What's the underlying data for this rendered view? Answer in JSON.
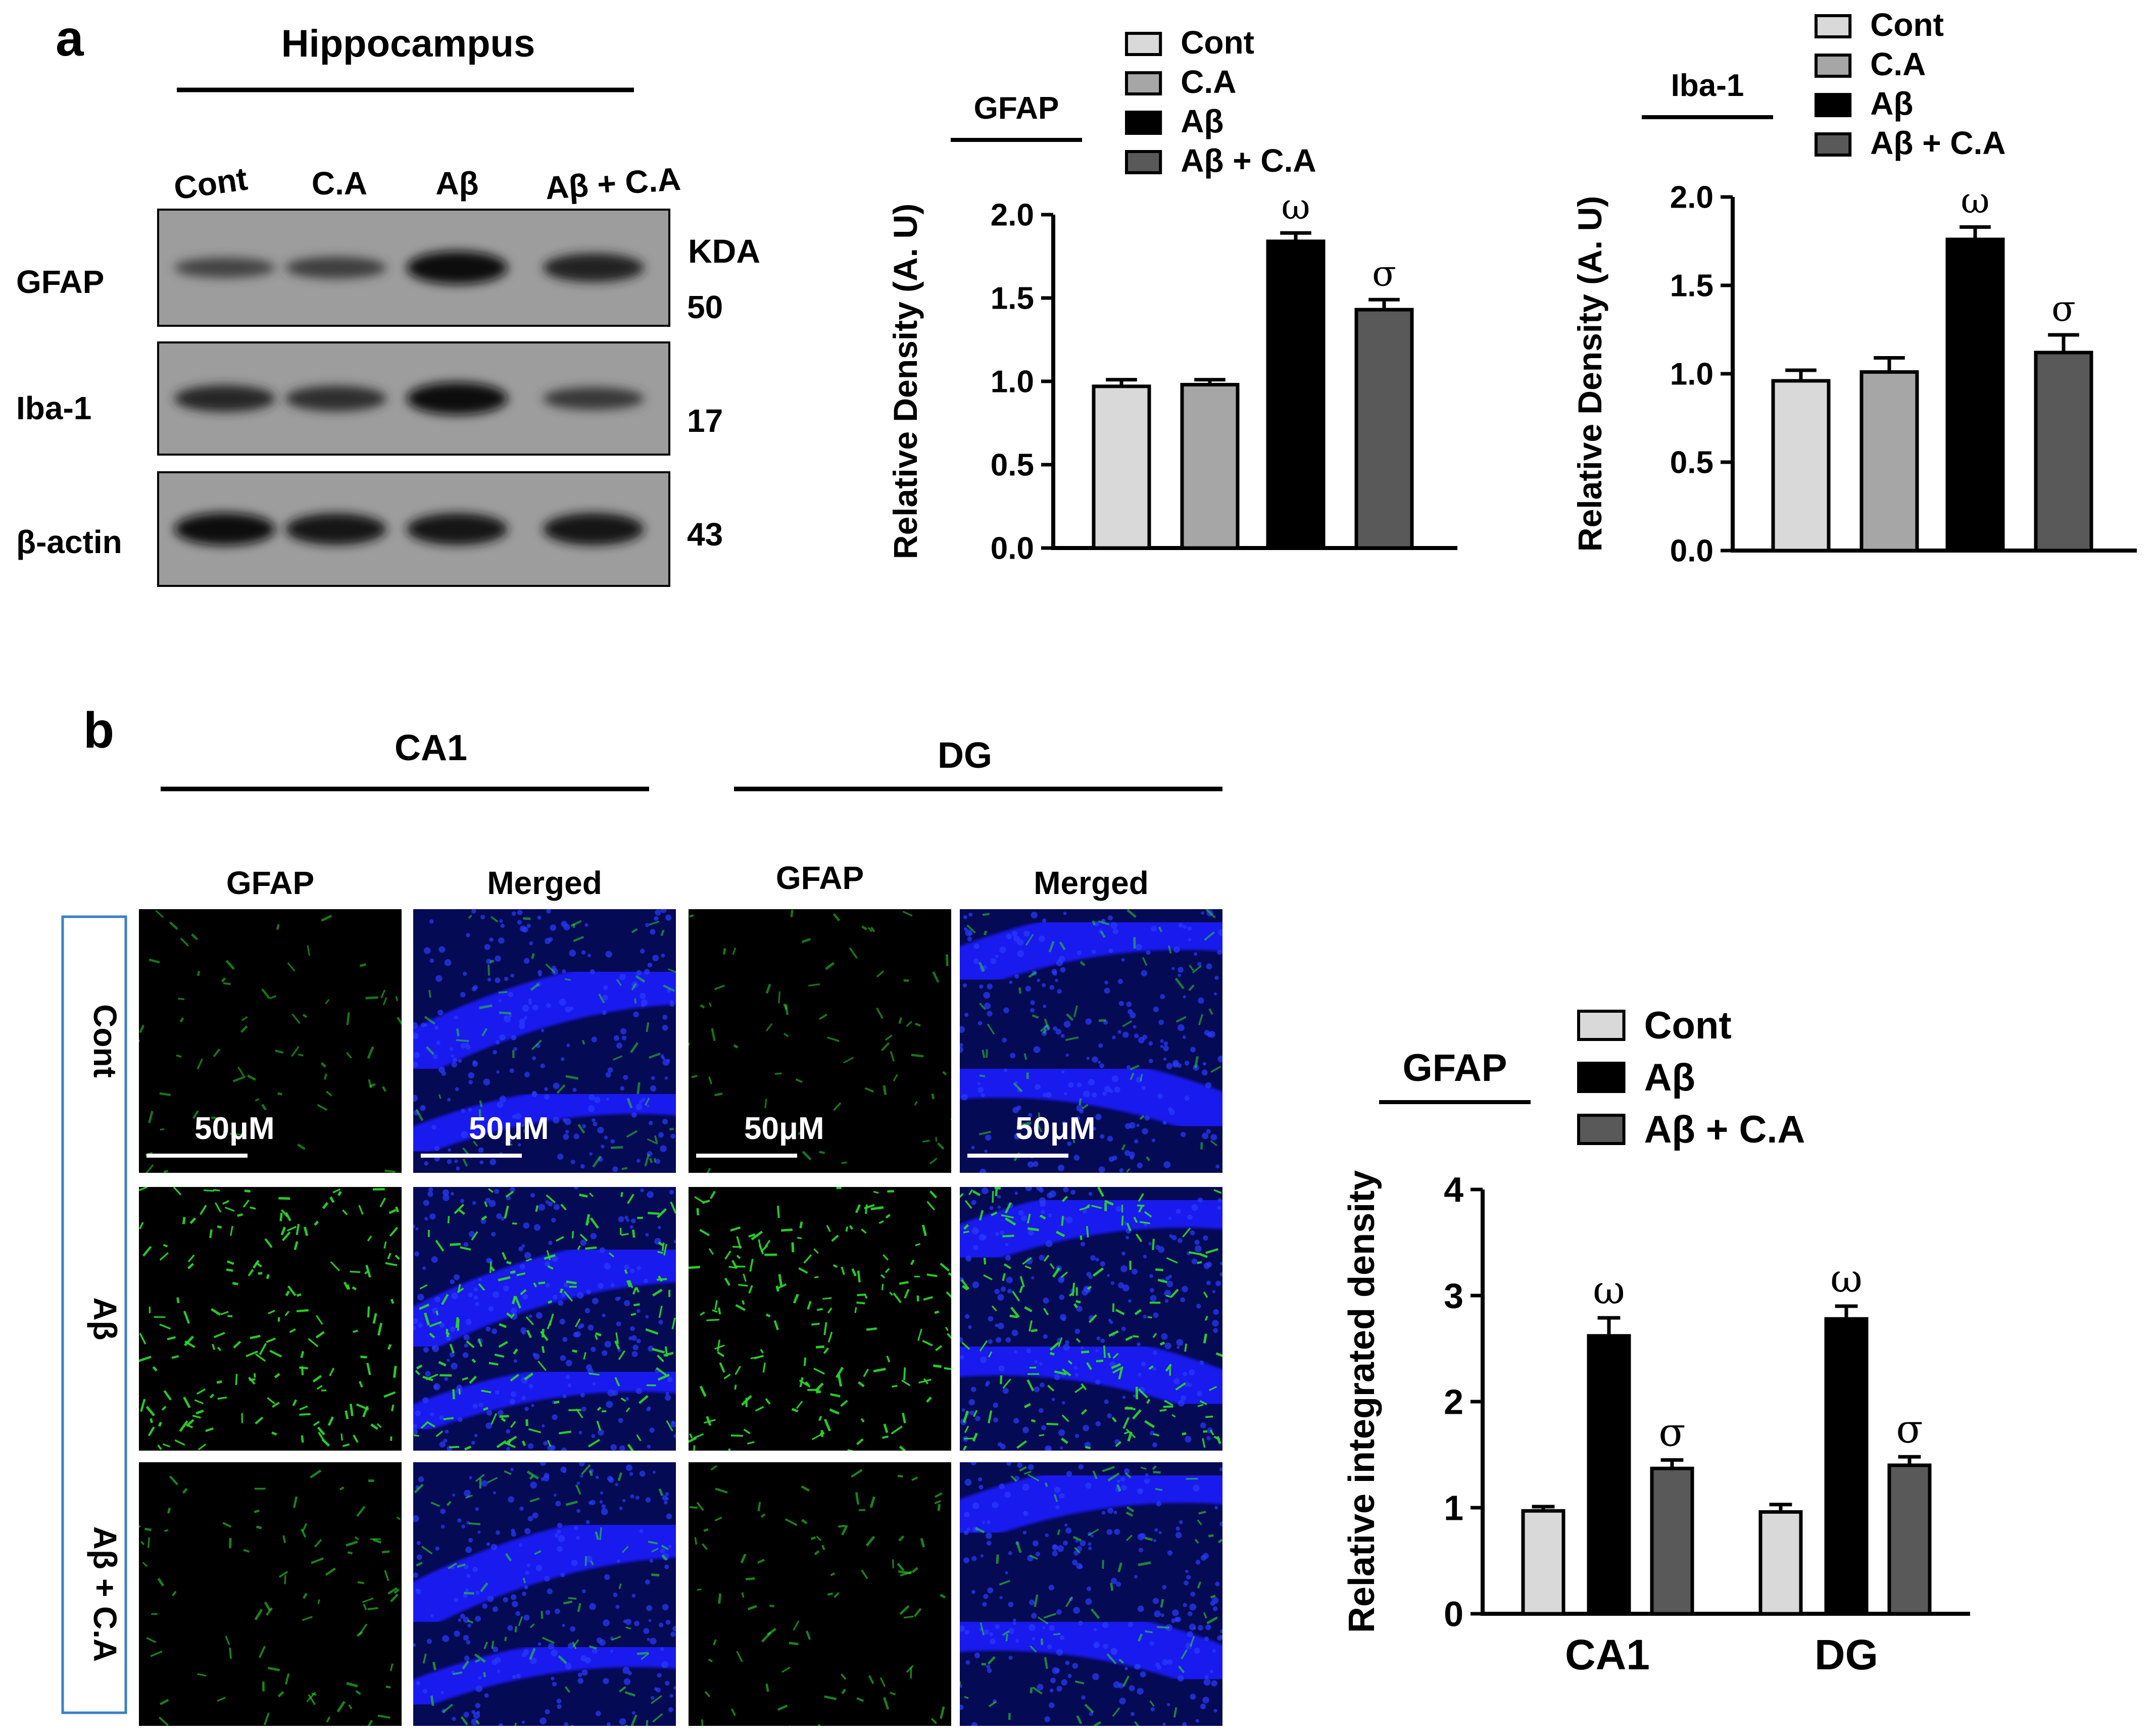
{
  "panel_a": {
    "label": "a",
    "region": "Hippocampus",
    "lanes": [
      "Cont",
      "C.A",
      "Aβ",
      "Aβ + C.A"
    ],
    "kda_header": "KDA",
    "blots": [
      {
        "name": "GFAP",
        "kda": "50",
        "band": [
          0.3,
          0.38,
          0.95,
          0.72
        ]
      },
      {
        "name": "Iba-1",
        "kda": "17",
        "band": [
          0.62,
          0.56,
          0.92,
          0.42
        ]
      },
      {
        "name": "β-actin",
        "kda": "43",
        "band": [
          0.92,
          0.86,
          0.88,
          0.9
        ]
      }
    ]
  },
  "chart_data": [
    {
      "type": "bar",
      "title": "GFAP",
      "ylabel": "Relative Density (A. U)",
      "ylim": [
        0,
        2.0
      ],
      "yticks": [
        "0.0",
        "0.5",
        "1.0",
        "1.5",
        "2.0"
      ],
      "legend": [
        "Cont",
        "C.A",
        "Aβ",
        "Aβ + C.A"
      ],
      "categories": [
        "Cont",
        "C.A",
        "Aβ",
        "Aβ + C.A"
      ],
      "values": [
        0.97,
        0.98,
        1.84,
        1.43
      ],
      "errors": [
        0.04,
        0.03,
        0.05,
        0.06
      ],
      "annotations": [
        "",
        "",
        "ω",
        "σ"
      ],
      "colors": [
        "#d9d9d9",
        "#a6a6a6",
        "#000000",
        "#595959"
      ]
    },
    {
      "type": "bar",
      "title": "Iba-1",
      "ylabel": "Relative Density (A. U)",
      "ylim": [
        0,
        2.0
      ],
      "yticks": [
        "0.0",
        "0.5",
        "1.0",
        "1.5",
        "2.0"
      ],
      "legend": [
        "Cont",
        "C.A",
        "Aβ",
        "Aβ + C.A"
      ],
      "categories": [
        "Cont",
        "C.A",
        "Aβ",
        "Aβ + C.A"
      ],
      "values": [
        0.96,
        1.01,
        1.76,
        1.12
      ],
      "errors": [
        0.06,
        0.08,
        0.07,
        0.1
      ],
      "annotations": [
        "",
        "",
        "ω",
        "σ"
      ],
      "colors": [
        "#d9d9d9",
        "#a6a6a6",
        "#000000",
        "#595959"
      ]
    },
    {
      "type": "bar",
      "title": "GFAP",
      "ylabel": "Relative integrated density",
      "ylim": [
        0,
        4
      ],
      "yticks": [
        "0",
        "1",
        "2",
        "3",
        "4"
      ],
      "categories": [
        "CA1",
        "DG"
      ],
      "legend": [
        "Cont",
        "Aβ",
        "Aβ + C.A"
      ],
      "series": [
        {
          "name": "Cont",
          "values": [
            0.97,
            0.96
          ],
          "errors": [
            0.04,
            0.07
          ],
          "annotations": [
            "",
            ""
          ]
        },
        {
          "name": "Aβ",
          "values": [
            2.62,
            2.78
          ],
          "errors": [
            0.17,
            0.12
          ],
          "annotations": [
            "ω",
            "ω"
          ]
        },
        {
          "name": "Aβ + C.A",
          "values": [
            1.37,
            1.4
          ],
          "errors": [
            0.08,
            0.08
          ],
          "annotations": [
            "σ",
            "σ"
          ]
        }
      ],
      "colors": [
        "#d9d9d9",
        "#000000",
        "#595959"
      ]
    }
  ],
  "panel_b": {
    "label": "b",
    "regions": [
      "CA1",
      "DG"
    ],
    "column_headers": [
      "GFAP",
      "Merged",
      "GFAP",
      "Merged"
    ],
    "row_labels": [
      "Cont",
      "Aβ",
      "Aβ + C.A"
    ],
    "scale_bar": "50μM",
    "gfap_intensity": [
      0.25,
      0.9,
      0.35
    ],
    "green_color": "#2bd62b",
    "blue_color": "#1a1aff"
  }
}
